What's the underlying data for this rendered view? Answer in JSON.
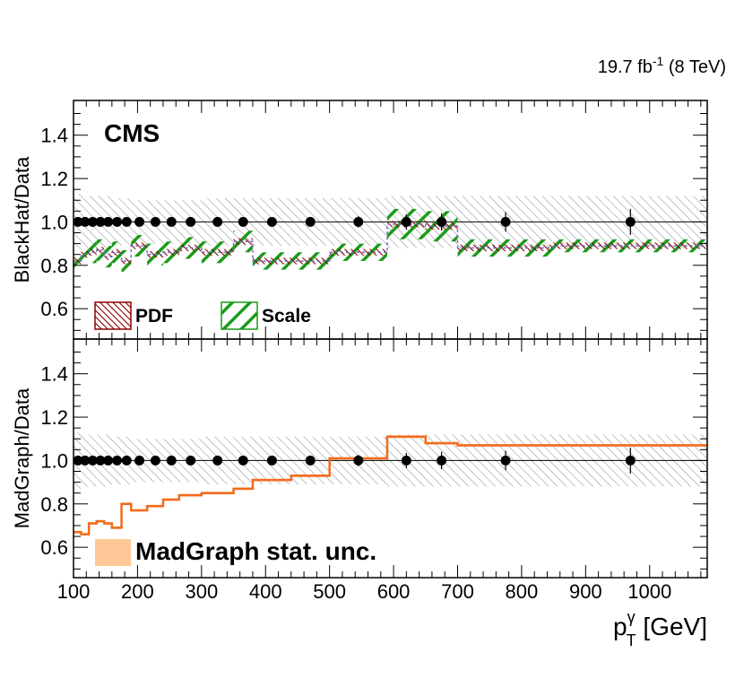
{
  "chart_data": {
    "type": "ratio-plot",
    "lumi_text": "19.7 fb",
    "lumi_sup": "-1",
    "lumi_rest": " (8 TeV)",
    "experiment": "CMS",
    "xlim": [
      100,
      1090
    ],
    "xticks": [
      "100",
      "200",
      "300",
      "400",
      "500",
      "600",
      "700",
      "800",
      "900",
      "1000"
    ],
    "xtick_values": [
      100,
      200,
      300,
      400,
      500,
      600,
      700,
      800,
      900,
      1000
    ],
    "xlabel_main": "p",
    "xlabel_sup": "γ",
    "xlabel_sub": "T",
    "xlabel_unit": " [GeV]",
    "bin_edges": [
      100,
      112,
      124,
      136,
      148,
      160,
      175,
      190,
      215,
      240,
      265,
      300,
      350,
      380,
      440,
      500,
      590,
      650,
      700,
      850,
      1090
    ],
    "data_points": {
      "x": [
        107,
        118,
        130,
        142,
        154,
        168,
        183,
        203,
        228,
        253,
        283,
        325,
        365,
        410,
        470,
        545,
        620,
        675,
        775,
        970
      ],
      "y": [
        1,
        1,
        1,
        1,
        1,
        1,
        1,
        1,
        1,
        1,
        1,
        1,
        1,
        1,
        1,
        1,
        1,
        1,
        1,
        1
      ],
      "yerr": [
        0.004,
        0.004,
        0.004,
        0.005,
        0.005,
        0.005,
        0.006,
        0.006,
        0.007,
        0.008,
        0.009,
        0.012,
        0.015,
        0.018,
        0.022,
        0.026,
        0.035,
        0.04,
        0.045,
        0.06
      ]
    },
    "panels": [
      {
        "name": "upper",
        "ylabel": "BlackHat/Data",
        "ylim": [
          0.46,
          1.56
        ],
        "yticks": [
          "0.6",
          "0.8",
          "1.0",
          "1.2",
          "1.4"
        ],
        "ytick_values": [
          0.6,
          0.8,
          1.0,
          1.2,
          1.4
        ],
        "data_unc_band": [
          0.13,
          0.12,
          0.12,
          0.12,
          0.12,
          0.11,
          0.11,
          0.1,
          0.1,
          0.1,
          0.1,
          0.11,
          0.11,
          0.11,
          0.11,
          0.11,
          0.12,
          0.12,
          0.12,
          0.12
        ],
        "series": [
          {
            "name": "BlackHat",
            "values": [
              0.82,
              0.85,
              0.86,
              0.87,
              0.84,
              0.86,
              0.82,
              0.89,
              0.85,
              0.86,
              0.88,
              0.86,
              0.91,
              0.82,
              0.82,
              0.86,
              0.99,
              0.98,
              0.88,
              0.89
            ]
          },
          {
            "name": "Scale",
            "half_width": [
              0.05,
              0.05,
              0.05,
              0.05,
              0.05,
              0.05,
              0.05,
              0.05,
              0.05,
              0.05,
              0.05,
              0.05,
              0.05,
              0.04,
              0.04,
              0.04,
              0.07,
              0.07,
              0.04,
              0.03
            ]
          },
          {
            "name": "PDF",
            "half_width": [
              0.015,
              0.015,
              0.015,
              0.015,
              0.015,
              0.015,
              0.015,
              0.015,
              0.015,
              0.015,
              0.015,
              0.015,
              0.015,
              0.015,
              0.015,
              0.015,
              0.015,
              0.015,
              0.015,
              0.015
            ]
          }
        ],
        "legend": [
          {
            "label": "PDF",
            "color": "#8b0000"
          },
          {
            "label": "Scale",
            "color": "#1a9b1a"
          }
        ]
      },
      {
        "name": "lower",
        "ylabel": "MadGraph/Data",
        "ylim": [
          0.46,
          1.56
        ],
        "yticks": [
          "0.6",
          "0.8",
          "1.0",
          "1.2",
          "1.4"
        ],
        "ytick_values": [
          0.6,
          0.8,
          1.0,
          1.2,
          1.4
        ],
        "data_unc_band": [
          0.13,
          0.12,
          0.12,
          0.12,
          0.12,
          0.11,
          0.11,
          0.1,
          0.1,
          0.1,
          0.1,
          0.11,
          0.11,
          0.11,
          0.11,
          0.11,
          0.12,
          0.12,
          0.12,
          0.12
        ],
        "series": [
          {
            "name": "MadGraph",
            "values": [
              0.67,
              0.66,
              0.71,
              0.72,
              0.71,
              0.69,
              0.8,
              0.77,
              0.79,
              0.82,
              0.84,
              0.85,
              0.87,
              0.91,
              0.93,
              1.01,
              1.11,
              1.08,
              1.07,
              1.07
            ]
          }
        ],
        "legend": [
          {
            "label": "MadGraph stat. unc.",
            "color": "#ffc896"
          }
        ]
      }
    ],
    "colors": {
      "orange": "#f26b1d",
      "green": "#1a9b1a",
      "darkred": "#8b0000",
      "hatch_gray": "#9a9a9a",
      "band_orange": "#ffc896"
    }
  }
}
